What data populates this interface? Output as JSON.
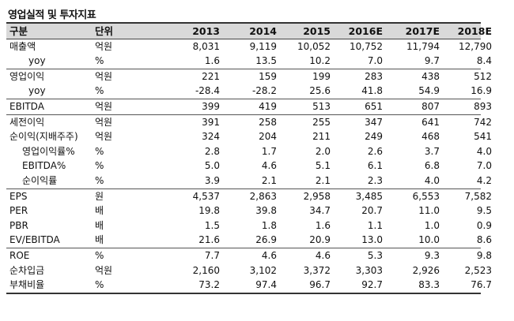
{
  "title": "영업실적 및 투자지표",
  "headers": [
    "구분",
    "단위",
    "2013",
    "2014",
    "2015",
    "2016E",
    "2017E",
    "2018E"
  ],
  "groups": [
    {
      "rows": [
        {
          "label": "매출액",
          "unit": "억원",
          "values": [
            "8,031",
            "9,119",
            "10,052",
            "10,752",
            "11,794",
            "12,790"
          ],
          "indent": 0
        },
        {
          "label": "yoy",
          "unit": "%",
          "values": [
            "1.6",
            "13.5",
            "10.2",
            "7.0",
            "9.7",
            "8.4"
          ],
          "indent": 2
        }
      ]
    },
    {
      "rows": [
        {
          "label": "영업이익",
          "unit": "억원",
          "values": [
            "221",
            "159",
            "199",
            "283",
            "438",
            "512"
          ],
          "indent": 0
        },
        {
          "label": "yoy",
          "unit": "%",
          "values": [
            "-28.4",
            "-28.2",
            "25.6",
            "41.8",
            "54.9",
            "16.9"
          ],
          "indent": 2
        }
      ]
    },
    {
      "rows": [
        {
          "label": "EBITDA",
          "unit": "억원",
          "values": [
            "399",
            "419",
            "513",
            "651",
            "807",
            "893"
          ],
          "indent": 0
        }
      ]
    },
    {
      "rows": [
        {
          "label": "세전이익",
          "unit": "억원",
          "values": [
            "391",
            "258",
            "255",
            "347",
            "641",
            "742"
          ],
          "indent": 0
        },
        {
          "label": "순이익(지배주주)",
          "unit": "억원",
          "values": [
            "324",
            "204",
            "211",
            "249",
            "468",
            "541"
          ],
          "indent": 0
        },
        {
          "label": "영업이익률%",
          "unit": "%",
          "values": [
            "2.8",
            "1.7",
            "2.0",
            "2.6",
            "3.7",
            "4.0"
          ],
          "indent": 1
        },
        {
          "label": "EBITDA%",
          "unit": "%",
          "values": [
            "5.0",
            "4.6",
            "5.1",
            "6.1",
            "6.8",
            "7.0"
          ],
          "indent": 1
        },
        {
          "label": "순이익률",
          "unit": "%",
          "values": [
            "3.9",
            "2.1",
            "2.1",
            "2.3",
            "4.0",
            "4.2"
          ],
          "indent": 1
        }
      ]
    },
    {
      "rows": [
        {
          "label": "EPS",
          "unit": "원",
          "values": [
            "4,537",
            "2,863",
            "2,958",
            "3,485",
            "6,553",
            "7,582"
          ],
          "indent": 0
        },
        {
          "label": "PER",
          "unit": "배",
          "values": [
            "19.8",
            "39.8",
            "34.7",
            "20.7",
            "11.0",
            "9.5"
          ],
          "indent": 0
        },
        {
          "label": "PBR",
          "unit": "배",
          "values": [
            "1.5",
            "1.8",
            "1.6",
            "1.1",
            "1.0",
            "0.9"
          ],
          "indent": 0
        },
        {
          "label": "EV/EBITDA",
          "unit": "배",
          "values": [
            "21.6",
            "26.9",
            "20.9",
            "13.0",
            "10.0",
            "8.6"
          ],
          "indent": 0
        }
      ]
    },
    {
      "rows": [
        {
          "label": "ROE",
          "unit": "%",
          "values": [
            "7.7",
            "4.6",
            "4.6",
            "5.3",
            "9.3",
            "9.8"
          ],
          "indent": 0
        },
        {
          "label": "순차입금",
          "unit": "억원",
          "values": [
            "2,160",
            "3,102",
            "3,372",
            "3,303",
            "2,926",
            "2,523"
          ],
          "indent": 0
        },
        {
          "label": "부채비율",
          "unit": "%",
          "values": [
            "73.2",
            "97.4",
            "96.7",
            "92.7",
            "83.3",
            "76.7"
          ],
          "indent": 0
        }
      ]
    }
  ]
}
